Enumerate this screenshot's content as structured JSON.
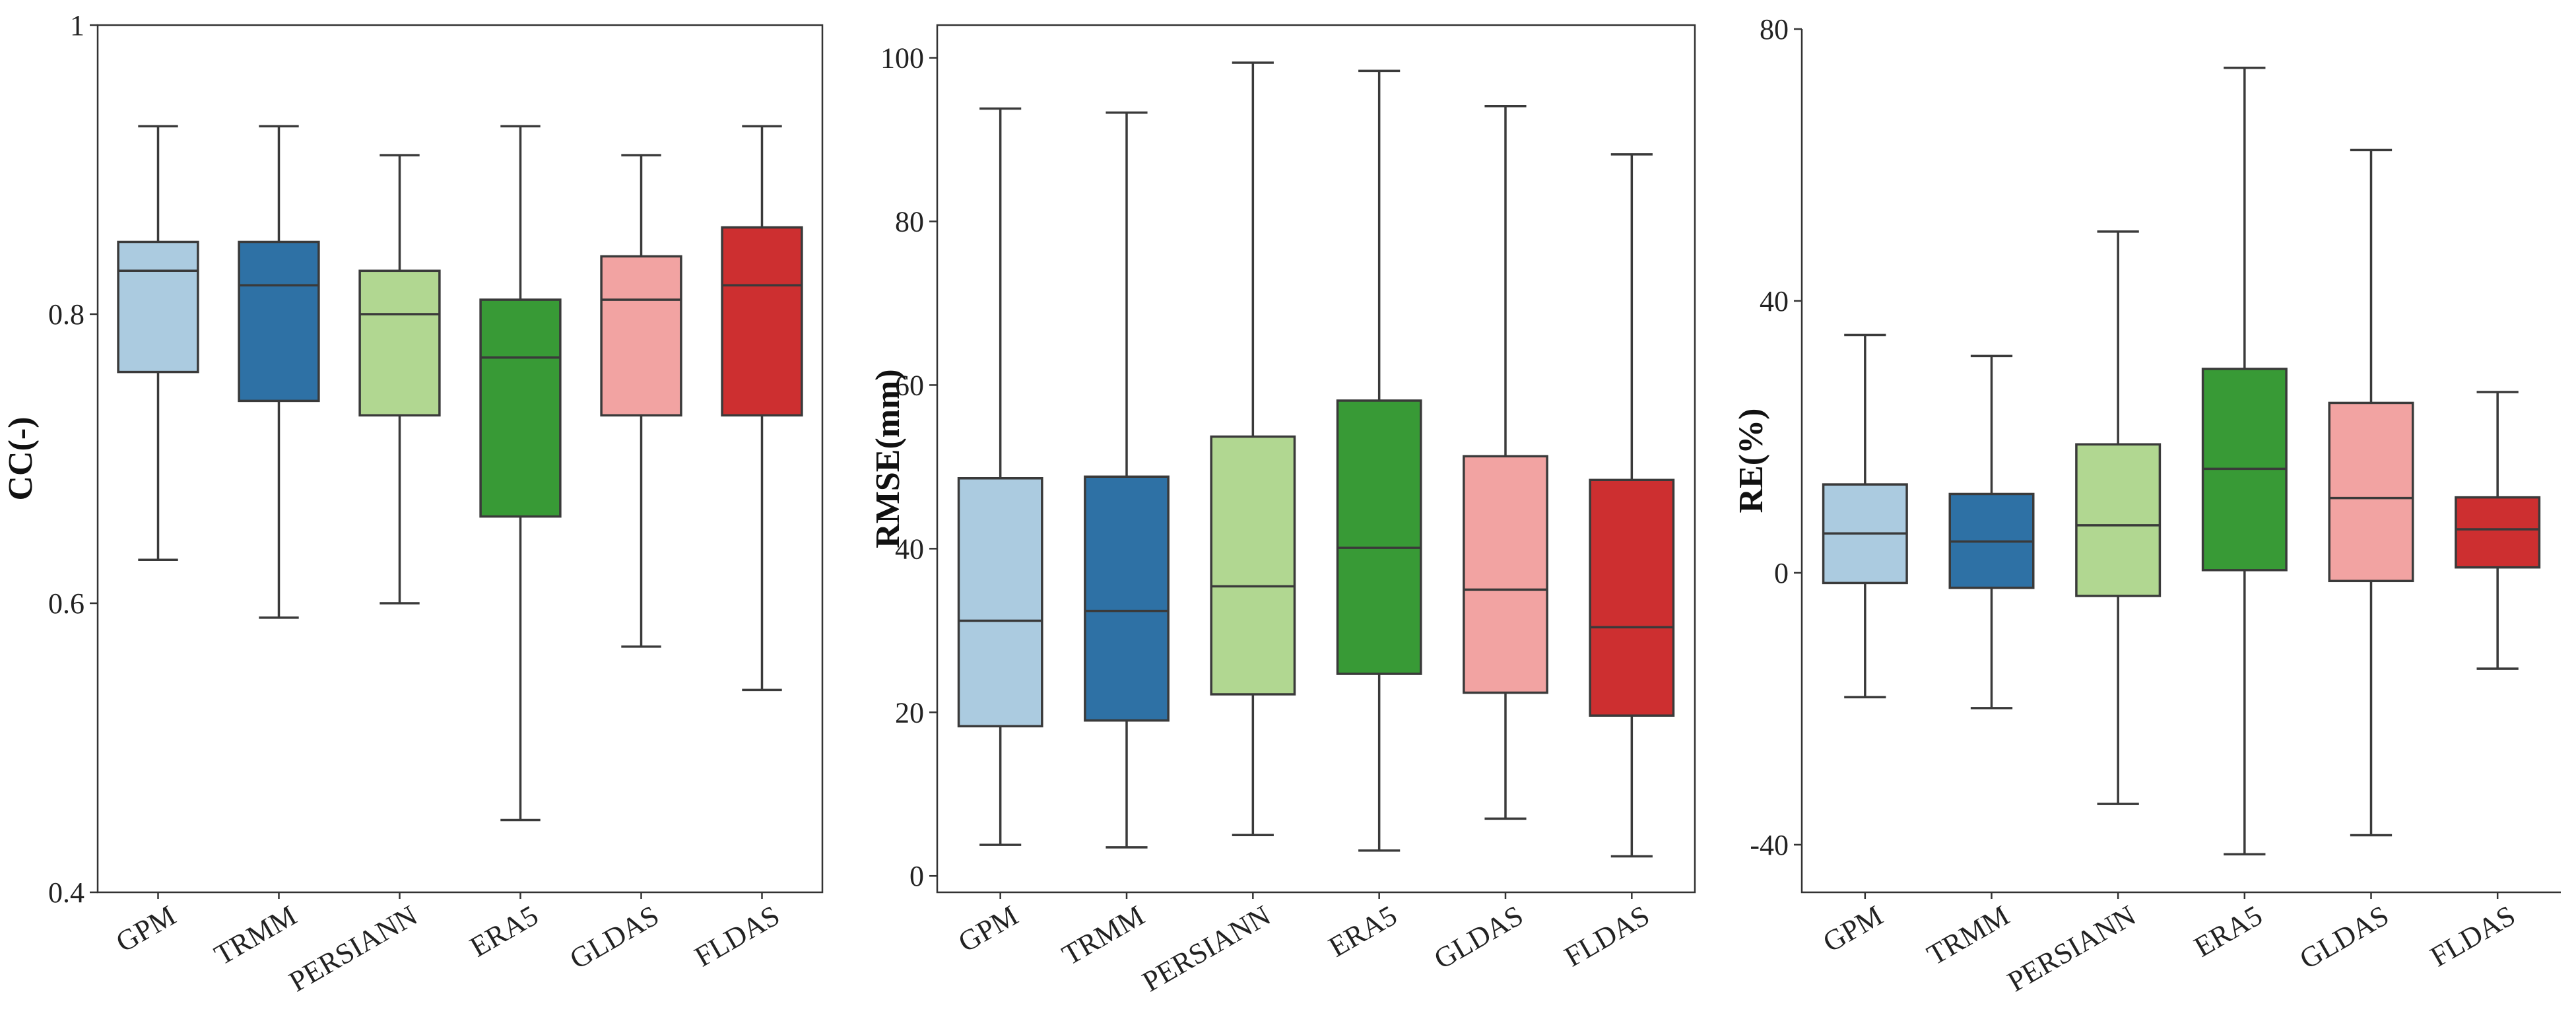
{
  "chart_data": [
    {
      "type": "box",
      "ylabel": "CC(-)",
      "ylim": [
        0.4,
        1.0
      ],
      "yticks": [
        0.4,
        0.6,
        0.8,
        1.0
      ],
      "ytick_labels": [
        "0.4",
        "0.6",
        "0.8",
        "1"
      ],
      "categories": [
        "GPM",
        "TRMM",
        "PERSIANN",
        "ERA5",
        "GLDAS",
        "FLDAS"
      ],
      "colors": [
        "#abcbe0",
        "#2e71a5",
        "#b1d791",
        "#389a36",
        "#f2a3a2",
        "#cd2f30"
      ],
      "boxes": [
        {
          "whislo": 0.63,
          "q1": 0.76,
          "med": 0.83,
          "q3": 0.85,
          "whishi": 0.93
        },
        {
          "whislo": 0.59,
          "q1": 0.74,
          "med": 0.82,
          "q3": 0.85,
          "whishi": 0.93
        },
        {
          "whislo": 0.6,
          "q1": 0.73,
          "med": 0.8,
          "q3": 0.83,
          "whishi": 0.91
        },
        {
          "whislo": 0.45,
          "q1": 0.66,
          "med": 0.77,
          "q3": 0.81,
          "whishi": 0.93
        },
        {
          "whislo": 0.57,
          "q1": 0.73,
          "med": 0.81,
          "q3": 0.84,
          "whishi": 0.91
        },
        {
          "whislo": 0.54,
          "q1": 0.73,
          "med": 0.82,
          "q3": 0.86,
          "whishi": 0.93
        }
      ]
    },
    {
      "type": "box",
      "ylabel": "RMSE(mm)",
      "ylim": [
        -2,
        104
      ],
      "yticks": [
        0,
        20,
        40,
        60,
        80,
        100
      ],
      "ytick_labels": [
        "0",
        "20",
        "40",
        "60",
        "80",
        "100"
      ],
      "categories": [
        "GPM",
        "TRMM",
        "PERSIANN",
        "ERA5",
        "GLDAS",
        "FLDAS"
      ],
      "colors": [
        "#abcbe0",
        "#2e71a5",
        "#b1d791",
        "#389a36",
        "#f2a3a2",
        "#cd2f30"
      ],
      "boxes": [
        {
          "whislo": 3.8,
          "q1": 18.3,
          "med": 31.2,
          "q3": 48.6,
          "whishi": 93.8
        },
        {
          "whislo": 3.5,
          "q1": 19.0,
          "med": 32.4,
          "q3": 48.8,
          "whishi": 93.3
        },
        {
          "whislo": 5.0,
          "q1": 22.2,
          "med": 35.4,
          "q3": 53.7,
          "whishi": 99.4
        },
        {
          "whislo": 3.1,
          "q1": 24.7,
          "med": 40.1,
          "q3": 58.1,
          "whishi": 98.4
        },
        {
          "whislo": 7.0,
          "q1": 22.4,
          "med": 35.0,
          "q3": 51.3,
          "whishi": 94.1
        },
        {
          "whislo": 2.4,
          "q1": 19.6,
          "med": 30.4,
          "q3": 48.4,
          "whishi": 88.2
        }
      ]
    },
    {
      "type": "box",
      "ylabel": "RE(%)",
      "ylim": [
        -47,
        80
      ],
      "yticks": [
        -40,
        0,
        40,
        80
      ],
      "ytick_labels": [
        "-40",
        "0",
        "40",
        "80"
      ],
      "categories": [
        "GPM",
        "TRMM",
        "PERSIANN",
        "ERA5",
        "GLDAS",
        "FLDAS"
      ],
      "colors": [
        "#abcbe0",
        "#2e71a5",
        "#b1d791",
        "#389a36",
        "#f2a3a2",
        "#cd2f30"
      ],
      "boxes": [
        {
          "whislo": -18.3,
          "q1": -1.5,
          "med": 5.8,
          "q3": 13.0,
          "whishi": 35.0
        },
        {
          "whislo": -19.9,
          "q1": -2.2,
          "med": 4.6,
          "q3": 11.6,
          "whishi": 31.9
        },
        {
          "whislo": -34.0,
          "q1": -3.4,
          "med": 7.0,
          "q3": 18.9,
          "whishi": 50.2
        },
        {
          "whislo": -41.4,
          "q1": 0.4,
          "med": 15.3,
          "q3": 30.0,
          "whishi": 74.3
        },
        {
          "whislo": -38.6,
          "q1": -1.2,
          "med": 11.0,
          "q3": 25.0,
          "whishi": 62.2
        },
        {
          "whislo": -14.1,
          "q1": 0.8,
          "med": 6.4,
          "q3": 11.1,
          "whishi": 26.6
        }
      ]
    }
  ]
}
